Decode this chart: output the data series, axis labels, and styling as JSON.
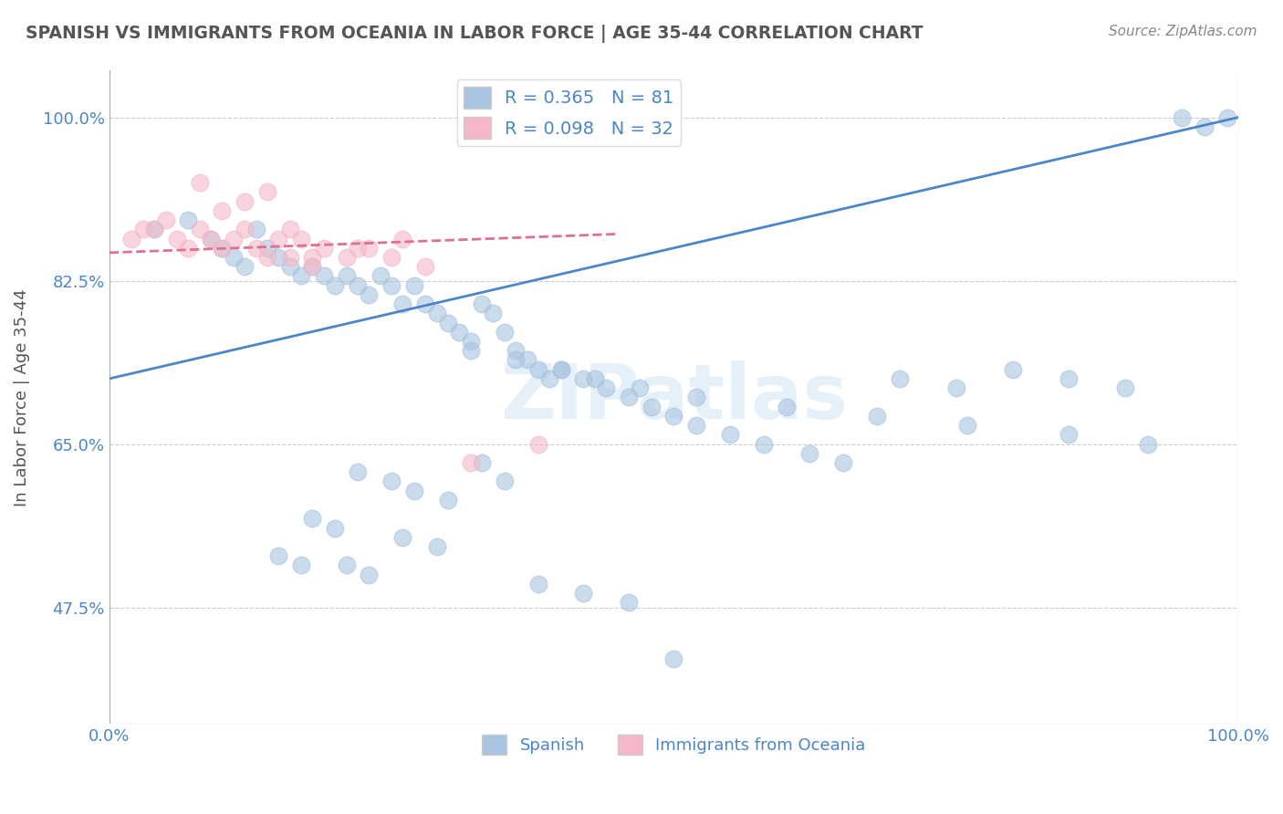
{
  "title": "SPANISH VS IMMIGRANTS FROM OCEANIA IN LABOR FORCE | AGE 35-44 CORRELATION CHART",
  "source": "Source: ZipAtlas.com",
  "ylabel": "In Labor Force | Age 35-44",
  "xlim": [
    0.0,
    1.0
  ],
  "ylim": [
    0.35,
    1.05
  ],
  "x_tick_labels": [
    "0.0%",
    "100.0%"
  ],
  "x_tick_vals": [
    0.0,
    1.0
  ],
  "y_tick_labels": [
    "47.5%",
    "65.0%",
    "82.5%",
    "100.0%"
  ],
  "y_tick_vals": [
    0.475,
    0.65,
    0.825,
    1.0
  ],
  "legend_entries": [
    {
      "label": "R = 0.365   N = 81",
      "color": "#a8c4e0"
    },
    {
      "label": "R = 0.098   N = 32",
      "color": "#f4b8c8"
    }
  ],
  "watermark": "ZIPatlas",
  "blue_color": "#a8c4e0",
  "pink_color": "#f4b8c8",
  "blue_line_color": "#4a86c8",
  "pink_line_color": "#e07090",
  "title_color": "#555555",
  "axis_color": "#4a86c8",
  "blue_scatter_x": [
    0.04,
    0.07,
    0.09,
    0.1,
    0.11,
    0.12,
    0.13,
    0.14,
    0.15,
    0.16,
    0.17,
    0.18,
    0.19,
    0.2,
    0.21,
    0.22,
    0.23,
    0.24,
    0.25,
    0.26,
    0.27,
    0.28,
    0.29,
    0.3,
    0.31,
    0.32,
    0.33,
    0.34,
    0.35,
    0.36,
    0.37,
    0.38,
    0.39,
    0.4,
    0.42,
    0.44,
    0.46,
    0.48,
    0.5,
    0.52,
    0.55,
    0.58,
    0.62,
    0.65,
    0.7,
    0.75,
    0.8,
    0.85,
    0.9,
    0.95,
    0.97,
    0.99,
    0.18,
    0.2,
    0.22,
    0.25,
    0.27,
    0.3,
    0.33,
    0.35,
    0.21,
    0.23,
    0.26,
    0.29,
    0.15,
    0.17,
    0.32,
    0.36,
    0.4,
    0.43,
    0.47,
    0.52,
    0.6,
    0.68,
    0.76,
    0.85,
    0.92,
    0.38,
    0.42,
    0.46,
    0.5
  ],
  "blue_scatter_y": [
    0.88,
    0.89,
    0.87,
    0.86,
    0.85,
    0.84,
    0.88,
    0.86,
    0.85,
    0.84,
    0.83,
    0.84,
    0.83,
    0.82,
    0.83,
    0.82,
    0.81,
    0.83,
    0.82,
    0.8,
    0.82,
    0.8,
    0.79,
    0.78,
    0.77,
    0.76,
    0.8,
    0.79,
    0.77,
    0.75,
    0.74,
    0.73,
    0.72,
    0.73,
    0.72,
    0.71,
    0.7,
    0.69,
    0.68,
    0.67,
    0.66,
    0.65,
    0.64,
    0.63,
    0.72,
    0.71,
    0.73,
    0.72,
    0.71,
    1.0,
    0.99,
    1.0,
    0.57,
    0.56,
    0.62,
    0.61,
    0.6,
    0.59,
    0.63,
    0.61,
    0.52,
    0.51,
    0.55,
    0.54,
    0.53,
    0.52,
    0.75,
    0.74,
    0.73,
    0.72,
    0.71,
    0.7,
    0.69,
    0.68,
    0.67,
    0.66,
    0.65,
    0.5,
    0.49,
    0.48,
    0.42
  ],
  "pink_scatter_x": [
    0.02,
    0.03,
    0.04,
    0.05,
    0.06,
    0.07,
    0.08,
    0.09,
    0.1,
    0.11,
    0.12,
    0.13,
    0.14,
    0.15,
    0.16,
    0.17,
    0.18,
    0.19,
    0.21,
    0.23,
    0.26,
    0.1,
    0.12,
    0.14,
    0.08,
    0.16,
    0.18,
    0.22,
    0.25,
    0.28,
    0.32,
    0.38
  ],
  "pink_scatter_y": [
    0.87,
    0.88,
    0.88,
    0.89,
    0.87,
    0.86,
    0.88,
    0.87,
    0.86,
    0.87,
    0.88,
    0.86,
    0.85,
    0.87,
    0.88,
    0.87,
    0.85,
    0.86,
    0.85,
    0.86,
    0.87,
    0.9,
    0.91,
    0.92,
    0.93,
    0.85,
    0.84,
    0.86,
    0.85,
    0.84,
    0.63,
    0.65
  ],
  "blue_line_x": [
    0.0,
    1.0
  ],
  "blue_line_y": [
    0.72,
    1.0
  ],
  "pink_line_x": [
    0.0,
    0.45
  ],
  "pink_line_y": [
    0.855,
    0.875
  ]
}
